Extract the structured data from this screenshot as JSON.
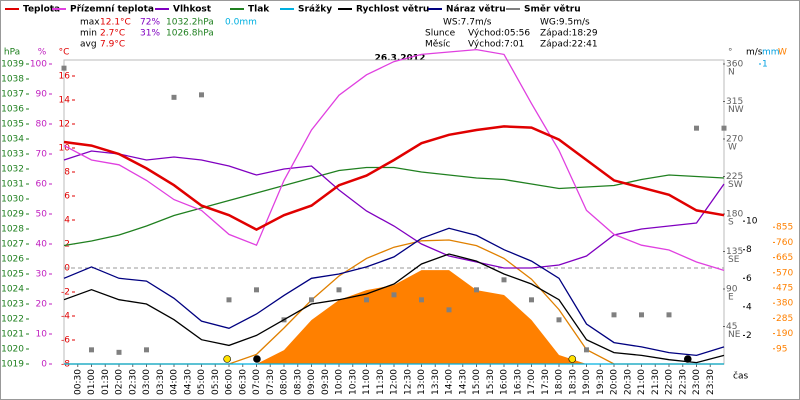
{
  "chart_data": {
    "type": "line",
    "title": "26.3.2012",
    "x_label": "čas",
    "stats": {
      "max": {
        "label": "max",
        "temperature": "12.1°C",
        "humidity": "72%",
        "pressure": "1032.2hPa",
        "precipitation": "0.0mm"
      },
      "min": {
        "label": "min",
        "temperature": "2.7°C",
        "humidity": "31%",
        "pressure": "1026.8hPa"
      },
      "avg": {
        "label": "avg",
        "temperature": "7.9°C"
      },
      "ws": "WS:7.7m/s",
      "wg": "WG:9.5m/s",
      "sun": {
        "label": "Slunce",
        "rise": "Východ:05:56",
        "set": "Západ:18:29"
      },
      "moon": {
        "label": "Měsíc",
        "rise": "Východ:7:01",
        "set": "Západ:22:41"
      }
    },
    "xlim": [
      0,
      24
    ],
    "x": [
      0,
      1,
      2,
      3,
      4,
      5,
      6,
      7,
      8,
      9,
      10,
      11,
      12,
      13,
      14,
      15,
      16,
      17,
      18,
      19,
      20,
      21,
      22,
      23,
      24
    ],
    "xticks": [
      {
        "value": 0.5,
        "label": "00:30"
      },
      {
        "value": 1,
        "label": "01:00"
      },
      {
        "value": 1.5,
        "label": "01:30"
      },
      {
        "value": 2,
        "label": "02:00"
      },
      {
        "value": 2.5,
        "label": "02:30"
      },
      {
        "value": 3,
        "label": "03:00"
      },
      {
        "value": 3.5,
        "label": "03:30"
      },
      {
        "value": 4,
        "label": "04:00"
      },
      {
        "value": 4.5,
        "label": "04:30"
      },
      {
        "value": 5,
        "label": "05:00"
      },
      {
        "value": 5.5,
        "label": "05:30"
      },
      {
        "value": 6,
        "label": "06:00"
      },
      {
        "value": 6.5,
        "label": "06:30"
      },
      {
        "value": 7,
        "label": "07:00"
      },
      {
        "value": 7.5,
        "label": "07:30"
      },
      {
        "value": 8,
        "label": "08:00"
      },
      {
        "value": 8.5,
        "label": "08:30"
      },
      {
        "value": 9,
        "label": "09:00"
      },
      {
        "value": 9.5,
        "label": "09:30"
      },
      {
        "value": 10,
        "label": "10:00"
      },
      {
        "value": 10.5,
        "label": "10:30"
      },
      {
        "value": 11,
        "label": "11:00"
      },
      {
        "value": 11.5,
        "label": "11:30"
      },
      {
        "value": 12,
        "label": "12:00"
      },
      {
        "value": 12.5,
        "label": "12:30"
      },
      {
        "value": 13,
        "label": "13:00"
      },
      {
        "value": 13.5,
        "label": "13:30"
      },
      {
        "value": 14,
        "label": "14:00"
      },
      {
        "value": 14.5,
        "label": "14:30"
      },
      {
        "value": 15,
        "label": "15:00"
      },
      {
        "value": 15.5,
        "label": "15:30"
      },
      {
        "value": 16,
        "label": "16:00"
      },
      {
        "value": 16.5,
        "label": "16:30"
      },
      {
        "value": 17,
        "label": "17:00"
      },
      {
        "value": 17.5,
        "label": "17:30"
      },
      {
        "value": 18,
        "label": "18:00"
      },
      {
        "value": 18.5,
        "label": "18:30"
      },
      {
        "value": 19,
        "label": "19:00"
      },
      {
        "value": 19.5,
        "label": "19:30"
      },
      {
        "value": 20,
        "label": "20:00"
      },
      {
        "value": 20.5,
        "label": "20:30"
      },
      {
        "value": 21,
        "label": "21:00"
      },
      {
        "value": 21.5,
        "label": "21:30"
      },
      {
        "value": 22,
        "label": "22:00"
      },
      {
        "value": 22.5,
        "label": "22:30"
      },
      {
        "value": 23,
        "label": "23:00"
      },
      {
        "value": 23.5,
        "label": "23:30"
      }
    ],
    "axes": {
      "pressure": {
        "label": "hPa",
        "color": "#208020",
        "lim": [
          1019,
          1039
        ],
        "ticks": [
          1019,
          1020,
          1021,
          1022,
          1023,
          1024,
          1025,
          1026,
          1027,
          1028,
          1029,
          1030,
          1031,
          1032,
          1033,
          1034,
          1035,
          1036,
          1037,
          1038,
          1039
        ]
      },
      "humidity": {
        "label": "%",
        "color": "#c020c0",
        "lim": [
          0,
          100
        ],
        "ticks": [
          0,
          10,
          20,
          30,
          40,
          50,
          60,
          70,
          80,
          90,
          100
        ]
      },
      "temperature": {
        "label": "°C",
        "color": "#e00000",
        "lim": [
          -8,
          17
        ],
        "ticks": [
          -8,
          -6,
          -4,
          -2,
          0,
          2,
          4,
          6,
          8,
          10,
          12,
          14,
          16
        ],
        "zero_line": true
      },
      "direction": {
        "label": "°",
        "color": "#606060",
        "lim": [
          0,
          360
        ],
        "ticks": [
          45,
          90,
          135,
          180,
          225,
          270,
          315,
          360
        ],
        "tick_names": [
          "NE",
          "E",
          "SE",
          "S",
          "SW",
          "W",
          "NW",
          "N"
        ]
      },
      "wind": {
        "label": "m/s",
        "color": "#000000",
        "lim": [
          0,
          21
        ],
        "ticks": [
          2,
          4,
          6,
          8,
          10
        ]
      },
      "precipitation": {
        "label": "mm",
        "color": "#00a0e0",
        "lim": [
          0,
          1
        ],
        "ticks": [
          1
        ]
      },
      "solar": {
        "label": "W",
        "color": "#ff8000",
        "lim": [
          0,
          1875
        ],
        "ticks": [
          95,
          190,
          285,
          380,
          475,
          570,
          665,
          760,
          855
        ]
      }
    },
    "series": [
      {
        "name": "Teplota",
        "color": "#e00000",
        "axis": "temperature",
        "values": [
          10.5,
          10.2,
          9.5,
          8.3,
          6.9,
          5.2,
          4.4,
          3.2,
          4.4,
          5.2,
          6.9,
          7.7,
          9,
          10.4,
          11.1,
          11.5,
          11.8,
          11.7,
          10.7,
          9,
          7.3,
          6.7,
          6.1,
          4.8,
          4.4
        ]
      },
      {
        "name": "Přízemní teplota",
        "color": "#e040e0",
        "axis": "temperature",
        "values": [
          10.2,
          9,
          8.6,
          7.3,
          5.7,
          4.8,
          2.8,
          1.9,
          7.3,
          11.5,
          14.4,
          16.1,
          17.2,
          17.8,
          18,
          18.2,
          17.8,
          13.7,
          9.8,
          4.8,
          2.8,
          1.9,
          1.5,
          0.5,
          -0.2
        ]
      },
      {
        "name": "Vlhkost",
        "color": "#8000c0",
        "axis": "humidity",
        "values": [
          68,
          71,
          70,
          68,
          69,
          68,
          66,
          63,
          65,
          66,
          58,
          51,
          46,
          40,
          36,
          34,
          32,
          32,
          33,
          36,
          43,
          45,
          46,
          47,
          60
        ]
      },
      {
        "name": "Tlak",
        "color": "#208020",
        "axis": "pressure",
        "values": [
          1026.9,
          1027.2,
          1027.6,
          1028.2,
          1028.9,
          1029.4,
          1029.9,
          1030.4,
          1030.9,
          1031.4,
          1031.9,
          1032.1,
          1032.1,
          1031.8,
          1031.6,
          1031.4,
          1031.3,
          1031,
          1030.7,
          1030.8,
          1030.9,
          1031.3,
          1031.6,
          1031.5,
          1031.4
        ]
      },
      {
        "name": "Srážky",
        "color": "#00b0e0",
        "axis": "precipitation",
        "values": [
          0,
          0,
          0,
          0,
          0,
          0,
          0,
          0,
          0,
          0,
          0,
          0,
          0,
          0,
          0,
          0,
          0,
          0,
          0,
          0,
          0,
          0,
          0,
          0,
          0
        ]
      },
      {
        "name": "Rychlost větru",
        "color": "#000000",
        "axis": "wind",
        "values": [
          4.5,
          5.2,
          4.5,
          4.2,
          3.1,
          1.7,
          1.3,
          2,
          3.1,
          4.2,
          4.5,
          4.9,
          5.6,
          7,
          7.7,
          7.2,
          6.3,
          5.6,
          4.5,
          1.7,
          0.8,
          0.6,
          0.3,
          0.1,
          0.6
        ]
      },
      {
        "name": "Náraz větru",
        "color": "#000080",
        "axis": "wind",
        "values": [
          6,
          6.8,
          6,
          5.8,
          4.6,
          3,
          2.5,
          3.5,
          4.8,
          6,
          6.3,
          6.8,
          7.5,
          8.8,
          9.5,
          9,
          8,
          7.2,
          6,
          2.8,
          1.5,
          1.2,
          0.8,
          0.6,
          1.2
        ]
      },
      {
        "name": "Směr větru",
        "color": "#808080",
        "axis": "direction",
        "style": "points",
        "values": [
          355,
          17,
          14,
          17,
          320,
          323,
          77,
          89,
          53,
          77,
          89,
          77,
          83,
          77,
          65,
          89,
          101,
          77,
          53,
          17,
          59,
          59,
          59,
          283,
          283
        ]
      },
      {
        "color": "#ff8000",
        "axis": "solar",
        "style": "area",
        "values": [
          0,
          0,
          0,
          0,
          0,
          0,
          0,
          0,
          87,
          275,
          400,
          462,
          494,
          587,
          587,
          462,
          431,
          275,
          56,
          0,
          0,
          0,
          0,
          0,
          0
        ]
      },
      {
        "color": "#e08000",
        "axis": "solar",
        "values": [
          0,
          0,
          0,
          0,
          0,
          0,
          0,
          60,
          225,
          400,
          550,
          660,
          730,
          770,
          775,
          740,
          660,
          530,
          340,
          90,
          0,
          0,
          0,
          0,
          0
        ]
      }
    ],
    "markers": [
      {
        "time": "05:56",
        "color": "#ffe000"
      },
      {
        "time": "07:01",
        "color": "#000000"
      },
      {
        "time": "18:29",
        "color": "#ffe000"
      },
      {
        "time": "22:41",
        "color": "#000000"
      }
    ]
  }
}
